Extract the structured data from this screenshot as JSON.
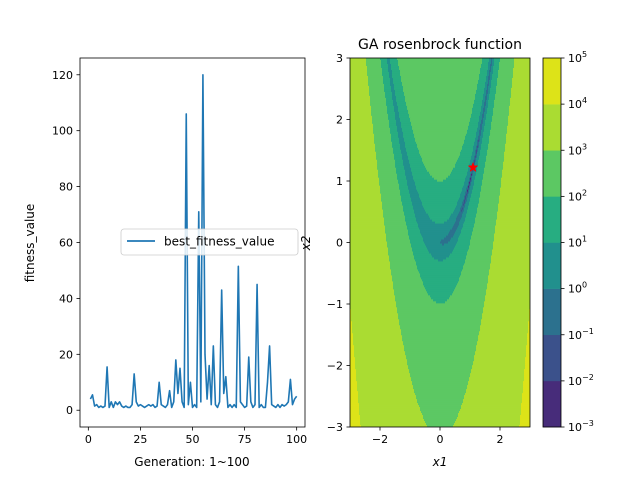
{
  "chart_data": [
    {
      "type": "line",
      "xlabel": "Generation: 1~100",
      "ylabel": "fitness_value",
      "xlim": [
        -4,
        104
      ],
      "ylim": [
        -6,
        126
      ],
      "xticks": [
        0,
        25,
        50,
        75,
        100
      ],
      "yticks": [
        0,
        20,
        40,
        60,
        80,
        100,
        120
      ],
      "legend": {
        "placement": "center-right",
        "entries": [
          "best_fitness_value"
        ]
      },
      "grid": false,
      "series": [
        {
          "name": "best_fitness_value",
          "color": "#1f77b4",
          "x": [
            1,
            2,
            3,
            4,
            5,
            6,
            7,
            8,
            9,
            10,
            11,
            12,
            13,
            14,
            15,
            16,
            17,
            18,
            19,
            20,
            21,
            22,
            23,
            24,
            25,
            26,
            27,
            28,
            29,
            30,
            31,
            32,
            33,
            34,
            35,
            36,
            37,
            38,
            39,
            40,
            41,
            42,
            43,
            44,
            45,
            46,
            47,
            48,
            49,
            50,
            51,
            52,
            53,
            54,
            55,
            56,
            57,
            58,
            59,
            60,
            61,
            62,
            63,
            64,
            65,
            66,
            67,
            68,
            69,
            70,
            71,
            72,
            73,
            74,
            75,
            76,
            77,
            78,
            79,
            80,
            81,
            82,
            83,
            84,
            85,
            86,
            87,
            88,
            89,
            90,
            91,
            92,
            93,
            94,
            95,
            96,
            97,
            98,
            99,
            100
          ],
          "values": [
            4,
            5.5,
            1.5,
            2,
            1,
            1.5,
            1,
            1.5,
            15.5,
            1,
            3,
            1,
            3,
            2,
            3,
            1.5,
            1,
            1.5,
            1,
            1,
            2,
            13,
            3,
            1.5,
            2,
            1.5,
            1,
            1.5,
            2,
            1.5,
            2,
            1,
            1.5,
            10,
            2,
            1.5,
            1,
            2,
            7,
            1,
            3,
            18,
            6,
            15,
            3,
            1,
            106,
            2,
            10,
            1,
            2,
            1,
            71,
            3,
            120,
            20,
            4,
            16,
            2,
            23,
            2,
            1,
            3,
            43,
            6,
            12,
            1,
            2,
            1,
            2,
            1,
            51.5,
            3,
            2,
            1,
            1.5,
            19,
            3,
            1,
            2,
            45,
            1,
            2,
            1,
            1,
            10,
            23,
            2,
            1.5,
            1,
            2,
            1,
            2,
            1.5,
            2,
            3,
            11,
            2,
            4,
            5
          ]
        }
      ]
    },
    {
      "type": "contour",
      "title": "GA rosenbrock function",
      "xlabel": "x1",
      "ylabel": "x2",
      "xlim": [
        -3,
        3
      ],
      "ylim": [
        -3,
        3
      ],
      "xticks": [
        -2,
        0,
        2
      ],
      "yticks": [
        -3,
        -2,
        -1,
        0,
        1,
        2,
        3
      ],
      "scale": "log",
      "levels": [
        0.001,
        0.01,
        0.1,
        1,
        10,
        100,
        1000,
        10000,
        100000
      ],
      "level_colors": [
        "#472c7a",
        "#3b518b",
        "#2c718e",
        "#21908d",
        "#27ad81",
        "#5cc863",
        "#aadc32",
        "#dde318"
      ],
      "colorbar_ticks": [
        {
          "base": "10",
          "exp": "−3",
          "value": 0.001
        },
        {
          "base": "10",
          "exp": "−2",
          "value": 0.01
        },
        {
          "base": "10",
          "exp": "−1",
          "value": 0.1
        },
        {
          "base": "10",
          "exp": "0",
          "value": 1
        },
        {
          "base": "10",
          "exp": "1",
          "value": 10
        },
        {
          "base": "10",
          "exp": "2",
          "value": 100
        },
        {
          "base": "10",
          "exp": "3",
          "value": 1000
        },
        {
          "base": "10",
          "exp": "4",
          "value": 10000
        },
        {
          "base": "10",
          "exp": "5",
          "value": 100000
        }
      ],
      "best_point": {
        "x": 1.1,
        "y": 1.22,
        "marker": "star",
        "color": "#ff0000"
      },
      "grid": false
    }
  ]
}
